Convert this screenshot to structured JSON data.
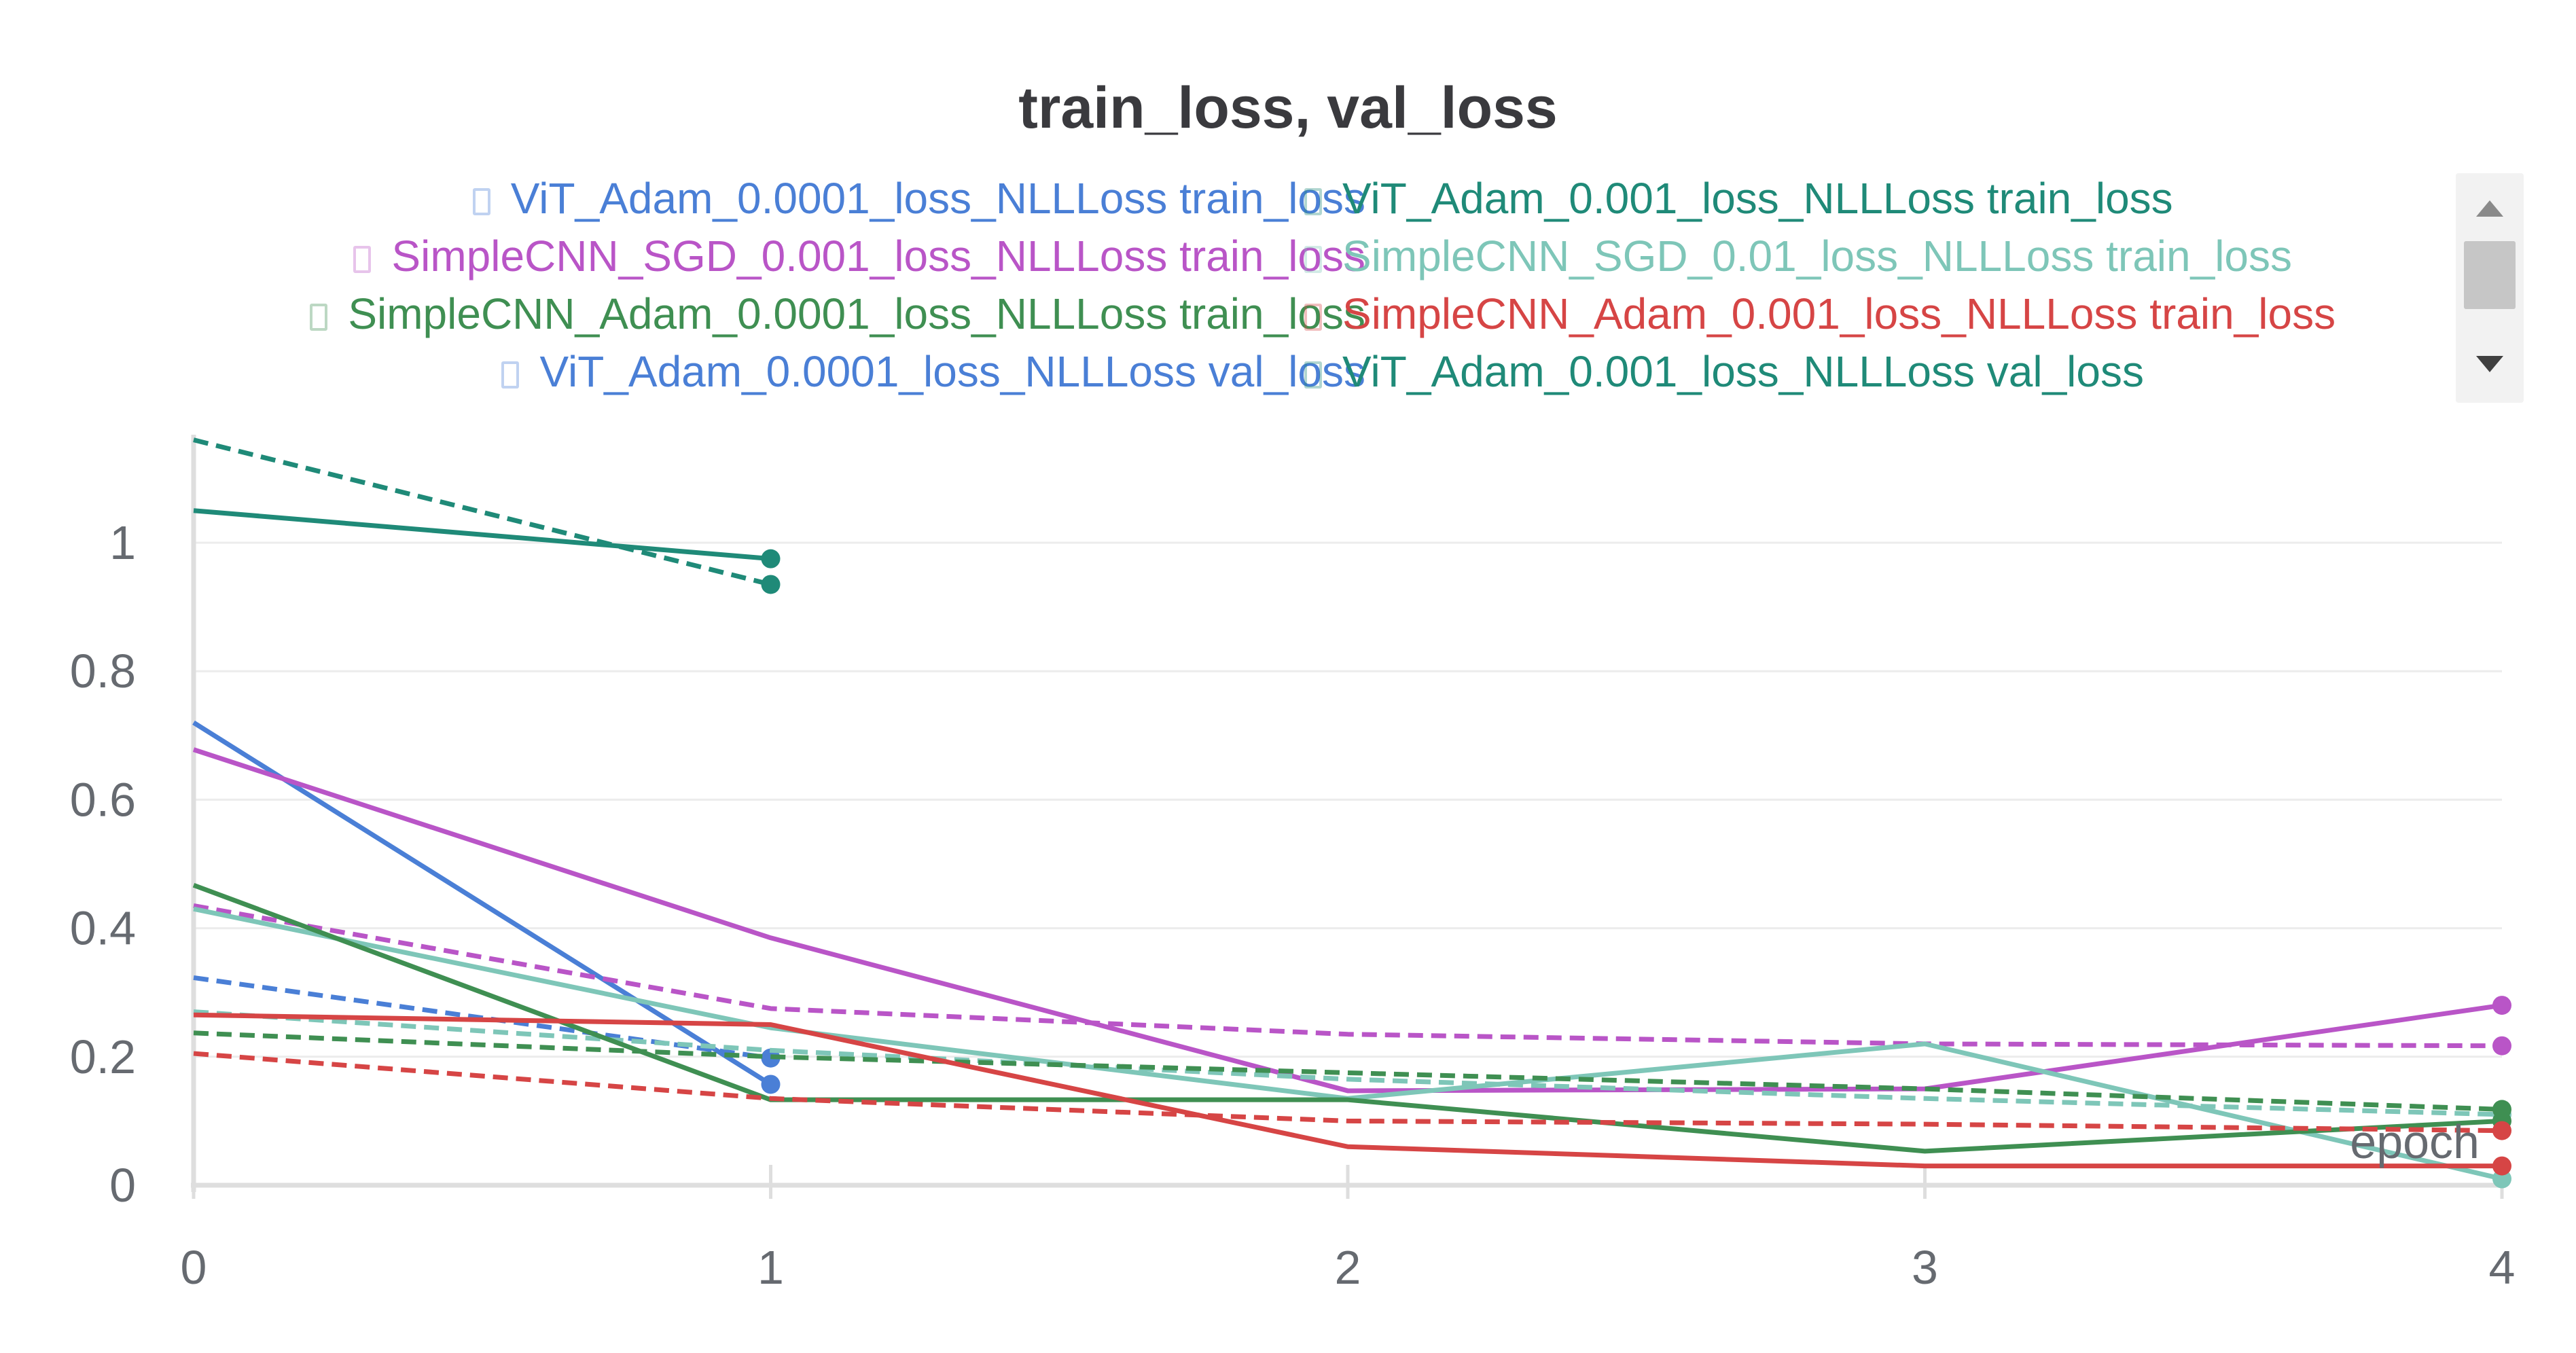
{
  "chart_data": {
    "type": "line",
    "title": "train_loss, val_loss",
    "xlabel": "epoch",
    "ylabel": "",
    "xlim": [
      0,
      4
    ],
    "ylim": [
      0,
      1.16
    ],
    "x_ticks": [
      "0",
      "1",
      "2",
      "3",
      "4"
    ],
    "y_ticks": [
      "0",
      "0.2",
      "0.4",
      "0.6",
      "0.8",
      "1"
    ],
    "grid": "horizontal",
    "legend_position": "top",
    "legend_visible": [
      {
        "name": "ViT_Adam_0.0001_loss_NLLLoss train_loss",
        "color": "#4a7fd6",
        "column": "left"
      },
      {
        "name": "ViT_Adam_0.001_loss_NLLLoss train_loss",
        "color": "#1f8a78",
        "column": "right"
      },
      {
        "name": "SimpleCNN_SGD_0.001_loss_NLLLoss train_loss",
        "color": "#b955c7",
        "column": "left"
      },
      {
        "name": "SimpleCNN_SGD_0.01_loss_NLLLoss train_loss",
        "color": "#7ec6b8",
        "column": "right"
      },
      {
        "name": "SimpleCNN_Adam_0.0001_loss_NLLLoss train_loss",
        "color": "#3f8f52",
        "column": "left"
      },
      {
        "name": "SimpleCNN_Adam_0.001_loss_NLLLoss train_loss",
        "color": "#d64545",
        "column": "right"
      },
      {
        "name": "ViT_Adam_0.0001_loss_NLLLoss val_loss",
        "color": "#4a7fd6",
        "column": "left"
      },
      {
        "name": "ViT_Adam_0.001_loss_NLLLoss val_loss",
        "color": "#1f8a78",
        "column": "right"
      }
    ],
    "series": [
      {
        "color": "#1f8a78",
        "dashed": false,
        "x": [
          0,
          1
        ],
        "values": [
          1.05,
          0.975
        ]
      },
      {
        "color": "#1f8a78",
        "dashed": true,
        "x": [
          0,
          1
        ],
        "values": [
          1.16,
          0.935
        ]
      },
      {
        "color": "#4a7fd6",
        "dashed": false,
        "x": [
          0,
          1
        ],
        "values": [
          0.72,
          0.157
        ]
      },
      {
        "color": "#4a7fd6",
        "dashed": true,
        "x": [
          0,
          1
        ],
        "values": [
          0.323,
          0.198
        ]
      },
      {
        "color": "#b955c7",
        "dashed": false,
        "x": [
          0,
          1,
          2,
          3,
          4
        ],
        "values": [
          0.678,
          0.385,
          0.147,
          0.15,
          0.28
        ]
      },
      {
        "color": "#b955c7",
        "dashed": true,
        "x": [
          0,
          1,
          2,
          3,
          4
        ],
        "values": [
          0.435,
          0.275,
          0.235,
          0.22,
          0.217
        ]
      },
      {
        "color": "#7ec6b8",
        "dashed": false,
        "x": [
          0,
          1,
          2,
          3,
          4
        ],
        "values": [
          0.43,
          0.245,
          0.135,
          0.22,
          0.01
        ]
      },
      {
        "color": "#7ec6b8",
        "dashed": true,
        "x": [
          0,
          1,
          2,
          3,
          4
        ],
        "values": [
          0.27,
          0.21,
          0.165,
          0.135,
          0.11
        ]
      },
      {
        "color": "#3f8f52",
        "dashed": false,
        "x": [
          0,
          1,
          2,
          3,
          4
        ],
        "values": [
          0.467,
          0.133,
          0.133,
          0.053,
          0.1
        ]
      },
      {
        "color": "#3f8f52",
        "dashed": true,
        "x": [
          0,
          1,
          2,
          3,
          4
        ],
        "values": [
          0.237,
          0.2,
          0.175,
          0.15,
          0.118
        ]
      },
      {
        "color": "#d64545",
        "dashed": false,
        "x": [
          0,
          1,
          2,
          3,
          4
        ],
        "values": [
          0.265,
          0.25,
          0.06,
          0.03,
          0.03
        ]
      },
      {
        "color": "#d64545",
        "dashed": true,
        "x": [
          0,
          1,
          2,
          3,
          4
        ],
        "values": [
          0.205,
          0.135,
          0.1,
          0.095,
          0.085
        ]
      }
    ]
  }
}
